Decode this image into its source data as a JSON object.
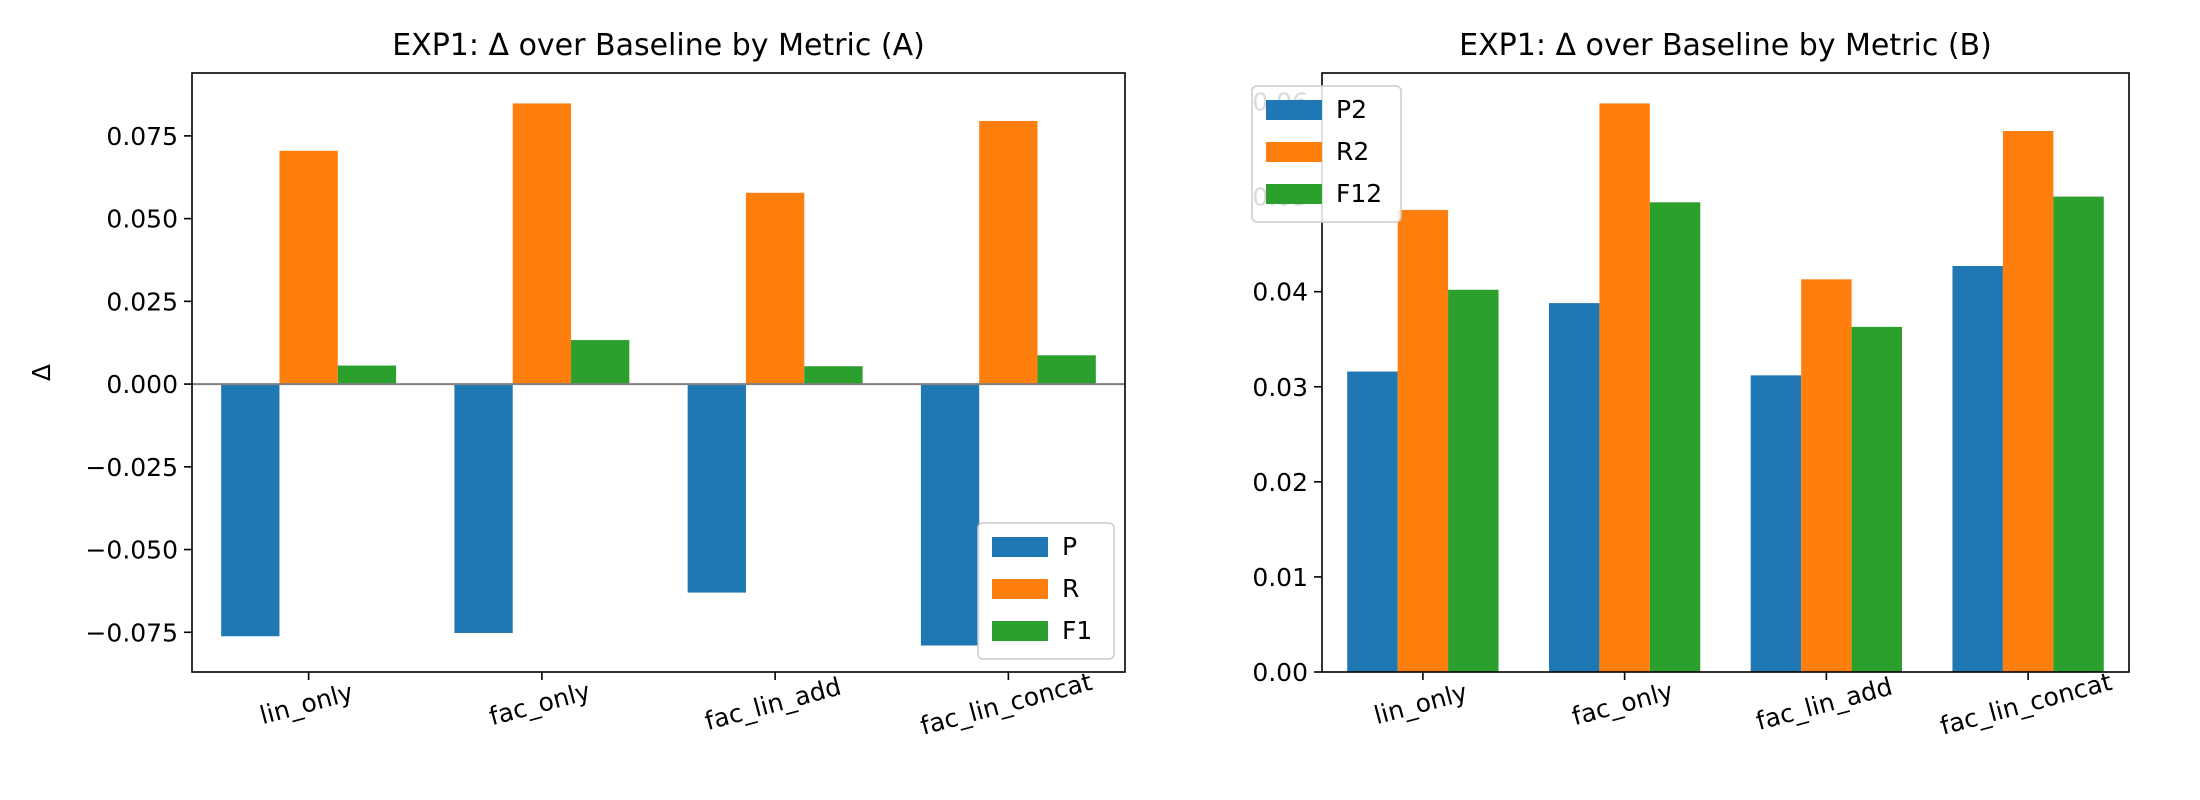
{
  "chart_data": [
    {
      "type": "bar",
      "title": "EXP1: Δ over Baseline by Metric (A)",
      "xlabel": "",
      "ylabel": "Δ",
      "categories": [
        "lin_only",
        "fac_only",
        "fac_lin_add",
        "fac_lin_concat"
      ],
      "series": [
        {
          "name": "P",
          "color": "#1f77b4",
          "values": [
            -0.0762,
            -0.0752,
            -0.063,
            -0.079
          ]
        },
        {
          "name": "R",
          "color": "#ff7f0e",
          "values": [
            0.0705,
            0.0848,
            0.0578,
            0.0795
          ]
        },
        {
          "name": "F1",
          "color": "#2ca02c",
          "values": [
            0.0056,
            0.0133,
            0.0054,
            0.0087
          ]
        }
      ],
      "ylim": [
        -0.087,
        0.094
      ],
      "yticks": [
        -0.075,
        -0.05,
        -0.025,
        0.0,
        0.025,
        0.05,
        0.075
      ],
      "ytick_labels": [
        "−0.075",
        "−0.050",
        "−0.025",
        "0.000",
        "0.025",
        "0.050",
        "0.075"
      ],
      "zero_line": true,
      "grid": false,
      "legend_position": "lower-right"
    },
    {
      "type": "bar",
      "title": "EXP1: Δ over Baseline by Metric (B)",
      "xlabel": "",
      "ylabel": "",
      "categories": [
        "lin_only",
        "fac_only",
        "fac_lin_add",
        "fac_lin_concat"
      ],
      "series": [
        {
          "name": "P2",
          "color": "#1f77b4",
          "values": [
            0.0316,
            0.0388,
            0.0312,
            0.0427
          ]
        },
        {
          "name": "R2",
          "color": "#ff7f0e",
          "values": [
            0.0486,
            0.0598,
            0.0413,
            0.0569
          ]
        },
        {
          "name": "F12",
          "color": "#2ca02c",
          "values": [
            0.0402,
            0.0494,
            0.0363,
            0.05
          ]
        }
      ],
      "ylim": [
        0.0,
        0.063
      ],
      "yticks": [
        0.0,
        0.01,
        0.02,
        0.03,
        0.04,
        0.05,
        0.06
      ],
      "ytick_labels": [
        "0.00",
        "0.01",
        "0.02",
        "0.03",
        "0.04",
        "0.05",
        "0.06"
      ],
      "zero_line": false,
      "grid": false,
      "legend_position": "upper-left"
    }
  ]
}
